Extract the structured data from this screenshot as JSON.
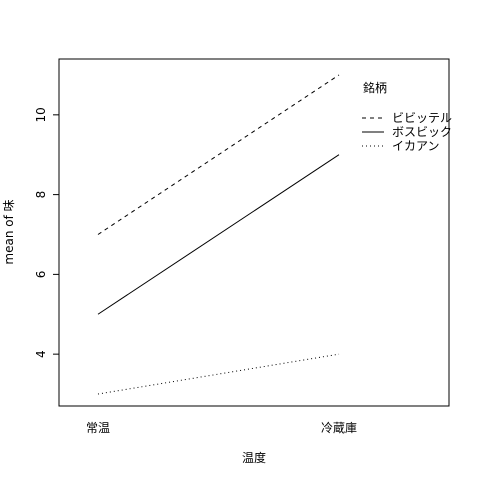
{
  "chart_data": {
    "type": "line",
    "title": "",
    "xlabel": "温度",
    "ylabel": "mean of  味",
    "categories": [
      "常温",
      "冷蔵庫"
    ],
    "ylim": [
      2.7,
      11.4
    ],
    "yticks": [
      4,
      6,
      8,
      10
    ],
    "grid": false,
    "legend_title": "銘柄",
    "legend_position": "top-right",
    "series": [
      {
        "name": "ビビッテル",
        "values": [
          7,
          11
        ],
        "line_style": "dashed",
        "color": "#000000"
      },
      {
        "name": "ボスビック",
        "values": [
          5,
          9
        ],
        "line_style": "solid",
        "color": "#000000"
      },
      {
        "name": "イカアン",
        "values": [
          3,
          4
        ],
        "line_style": "dotted",
        "color": "#000000"
      }
    ]
  }
}
